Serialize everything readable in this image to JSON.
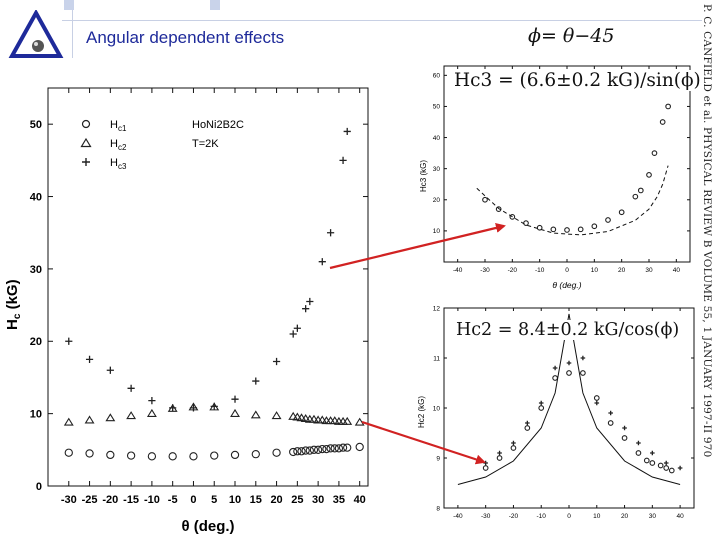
{
  "header": {
    "title": "Angular dependent effects",
    "phi_equation": "ϕ= θ−45",
    "colors": {
      "title": "#1e2a9a",
      "arrow": "#d12222"
    }
  },
  "side_citation": "P. C. CANFIELD et al.   PHYSICAL REVIEW B VOLUME 55, 1 JANUARY 1997-II    970",
  "main_chart": {
    "ylabel_main": "H",
    "ylabel_sub": "c",
    "ylabel_unit": " (kG)",
    "xlabel": "θ (deg.)",
    "legend": [
      {
        "marker": "circle",
        "label_main": "H",
        "label_sub": "c1"
      },
      {
        "marker": "triangle",
        "label_main": "H",
        "label_sub": "c2"
      },
      {
        "marker": "plus",
        "label_main": "H",
        "label_sub": "c3"
      }
    ],
    "annotation_compound": "HoNi2B2C",
    "annotation_temp": "T=2K"
  },
  "top_right_chart": {
    "formula": "Hc3 = (6.6±0.2 kG)/sin(ϕ)",
    "ylabel": "Hc3 (kG)",
    "xlabel": "θ (deg.)"
  },
  "bottom_right_chart": {
    "formula": "Hc2 = 8.4±0.2   kG/cos(ϕ)",
    "ylabel": "Hc2 (kG)",
    "xlabel": "θ (deg.)"
  },
  "chart_data": [
    {
      "type": "scatter",
      "title": "",
      "xlabel": "θ (deg.)",
      "ylabel": "Hc (kG)",
      "xlim": [
        -35,
        42
      ],
      "ylim": [
        0,
        55
      ],
      "xticks": [
        -30,
        -25,
        -20,
        -15,
        -10,
        -5,
        0,
        5,
        10,
        15,
        20,
        25,
        30,
        35,
        40
      ],
      "yticks": [
        0,
        10,
        20,
        30,
        40,
        50
      ],
      "series": [
        {
          "name": "Hc1",
          "marker": "circle",
          "x": [
            -30,
            -25,
            -20,
            -15,
            -10,
            -5,
            0,
            5,
            10,
            15,
            20,
            24,
            25,
            26,
            27,
            28,
            29,
            30,
            31,
            32,
            33,
            34,
            35,
            36,
            37,
            40
          ],
          "y": [
            4.6,
            4.5,
            4.3,
            4.2,
            4.1,
            4.1,
            4.1,
            4.2,
            4.3,
            4.4,
            4.6,
            4.7,
            4.8,
            4.8,
            4.9,
            4.9,
            5.0,
            5.0,
            5.1,
            5.1,
            5.2,
            5.2,
            5.2,
            5.3,
            5.3,
            5.4
          ]
        },
        {
          "name": "Hc2",
          "marker": "triangle",
          "x": [
            -30,
            -25,
            -20,
            -15,
            -10,
            -5,
            0,
            5,
            10,
            15,
            20,
            24,
            25,
            26,
            27,
            28,
            29,
            30,
            31,
            32,
            33,
            34,
            35,
            36,
            37,
            40
          ],
          "y": [
            8.8,
            9.1,
            9.4,
            9.7,
            10.0,
            10.7,
            10.9,
            10.9,
            10.0,
            9.8,
            9.7,
            9.6,
            9.5,
            9.4,
            9.3,
            9.2,
            9.2,
            9.1,
            9.1,
            9.0,
            9.0,
            9.0,
            8.9,
            8.9,
            8.9,
            8.8
          ]
        },
        {
          "name": "Hc3",
          "marker": "plus",
          "x": [
            -30,
            -25,
            -20,
            -15,
            -10,
            -5,
            0,
            5,
            10,
            15,
            20,
            24,
            25,
            27,
            28,
            31,
            33,
            36,
            37
          ],
          "y": [
            20.0,
            17.5,
            16.0,
            13.5,
            11.8,
            10.8,
            10.8,
            11.0,
            12.0,
            14.5,
            17.2,
            21.0,
            21.8,
            24.5,
            25.5,
            31.0,
            35.0,
            45.0,
            49.0
          ]
        }
      ]
    },
    {
      "type": "scatter",
      "title": "Hc3 = (6.6±0.2 kG)/sin(ϕ)",
      "xlabel": "θ (deg.)",
      "ylabel": "Hc3 (kG)",
      "xlim": [
        -45,
        45
      ],
      "ylim": [
        0,
        63
      ],
      "xticks": [
        -40,
        -30,
        -20,
        -10,
        0,
        10,
        20,
        30,
        40
      ],
      "yticks": [
        10,
        20,
        30,
        40,
        50,
        60
      ],
      "series": [
        {
          "name": "data",
          "marker": "circle",
          "x": [
            -30,
            -25,
            -20,
            -15,
            -10,
            -5,
            0,
            5,
            10,
            15,
            20,
            25,
            27,
            30,
            32,
            35,
            37
          ],
          "y": [
            20.0,
            17.0,
            14.5,
            12.5,
            11.0,
            10.5,
            10.3,
            10.5,
            11.5,
            13.5,
            16.0,
            21.0,
            23.0,
            28.0,
            35.0,
            45.0,
            50.0
          ]
        },
        {
          "name": "fit",
          "marker": "dashed-line",
          "x": [
            -33,
            -25,
            -15,
            -5,
            5,
            15,
            25,
            30,
            33,
            35,
            37
          ],
          "y": [
            23.7,
            17.2,
            11.9,
            9.3,
            8.7,
            9.8,
            13.4,
            17.0,
            21.0,
            25.0,
            31.0
          ]
        }
      ]
    },
    {
      "type": "scatter",
      "title": "Hc2 = 8.4±0.2 kG/cos(ϕ)",
      "xlabel": "θ (deg.)",
      "ylabel": "Hc2 (kG)",
      "xlim": [
        -45,
        45
      ],
      "ylim": [
        8,
        12
      ],
      "xticks": [
        -40,
        -30,
        -20,
        -10,
        0,
        10,
        20,
        30,
        40
      ],
      "yticks": [
        8,
        9,
        10,
        11,
        12
      ],
      "series": [
        {
          "name": "data",
          "marker": "circle",
          "x": [
            -30,
            -25,
            -20,
            -15,
            -10,
            -5,
            0,
            5,
            10,
            15,
            20,
            25,
            28,
            30,
            33,
            35,
            37
          ],
          "y": [
            8.8,
            9.0,
            9.2,
            9.6,
            10.0,
            10.6,
            10.7,
            10.7,
            10.2,
            9.7,
            9.4,
            9.1,
            8.95,
            8.9,
            8.85,
            8.8,
            8.75
          ]
        },
        {
          "name": "data-plus",
          "marker": "plus",
          "x": [
            -30,
            -25,
            -20,
            -15,
            -10,
            -5,
            0,
            5,
            10,
            15,
            20,
            25,
            30,
            35,
            40
          ],
          "y": [
            8.9,
            9.1,
            9.3,
            9.7,
            10.1,
            10.8,
            10.9,
            11.0,
            10.1,
            9.9,
            9.6,
            9.3,
            9.1,
            8.9,
            8.8
          ]
        },
        {
          "name": "fit",
          "marker": "line",
          "x": [
            -40,
            -30,
            -20,
            -10,
            -5,
            0,
            5,
            10,
            20,
            30,
            40
          ],
          "y": [
            8.47,
            8.62,
            8.94,
            9.6,
            10.3,
            11.88,
            10.3,
            9.6,
            8.94,
            8.62,
            8.47
          ]
        }
      ]
    }
  ]
}
